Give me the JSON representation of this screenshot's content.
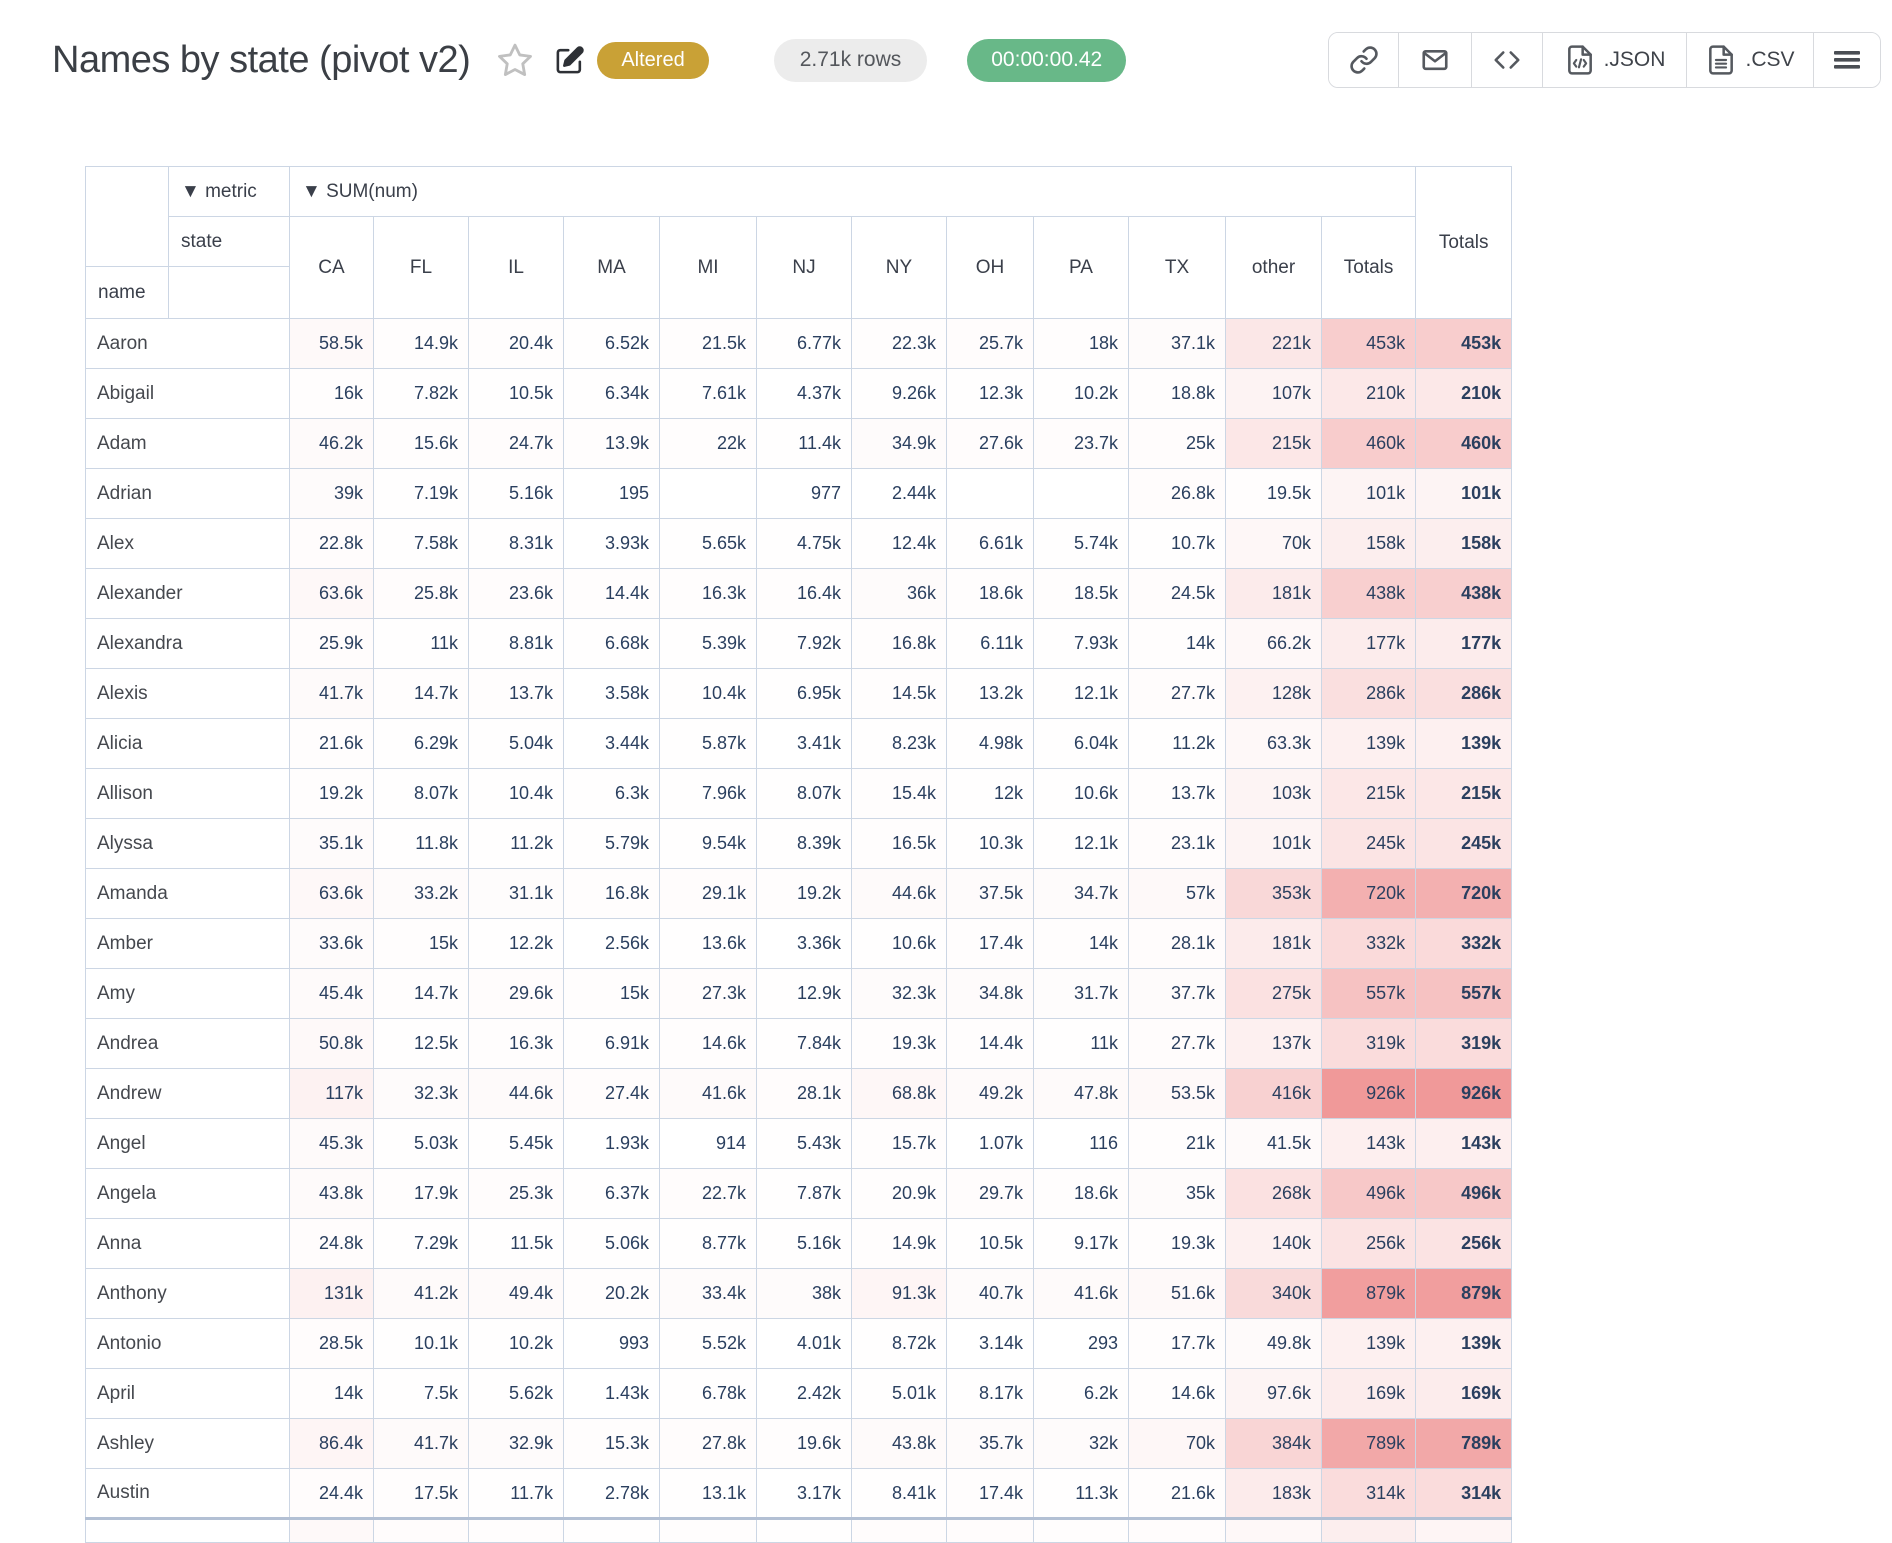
{
  "header": {
    "title": "Names by state (pivot v2)",
    "altered_badge": "Altered",
    "rows_badge": "2.71k rows",
    "timer_badge": "00:00:00.42",
    "accent_colors": {
      "altered_bg": "#c9a136",
      "timer_bg": "#68b888",
      "rows_bg": "#ececec"
    },
    "icons": {
      "star": "star-icon",
      "edit": "edit-icon",
      "link": "link-icon",
      "mail": "mail-icon",
      "code": "code-icon",
      "json_file": "file-json-icon",
      "csv_file": "file-csv-icon",
      "menu": "hamburger-menu-icon"
    },
    "export_json_label": ".JSON",
    "export_csv_label": ".CSV"
  },
  "pivot": {
    "metric_label": "▼ metric",
    "sum_label": "▼ SUM(num)",
    "state_label": "state",
    "name_label": "name",
    "totals_outer_label": "Totals",
    "columns": [
      "CA",
      "FL",
      "IL",
      "MA",
      "MI",
      "NJ",
      "NY",
      "OH",
      "PA",
      "TX",
      "other",
      "Totals"
    ],
    "heatmap": {
      "low_color": "#ffffff",
      "high_color": "#f09999",
      "max_value": "926k"
    },
    "rows": [
      {
        "name": "Aaron",
        "values": [
          "58.5k",
          "14.9k",
          "20.4k",
          "6.52k",
          "21.5k",
          "6.77k",
          "22.3k",
          "25.7k",
          "18k",
          "37.1k",
          "221k",
          "453k"
        ],
        "total": "453k"
      },
      {
        "name": "Abigail",
        "values": [
          "16k",
          "7.82k",
          "10.5k",
          "6.34k",
          "7.61k",
          "4.37k",
          "9.26k",
          "12.3k",
          "10.2k",
          "18.8k",
          "107k",
          "210k"
        ],
        "total": "210k"
      },
      {
        "name": "Adam",
        "values": [
          "46.2k",
          "15.6k",
          "24.7k",
          "13.9k",
          "22k",
          "11.4k",
          "34.9k",
          "27.6k",
          "23.7k",
          "25k",
          "215k",
          "460k"
        ],
        "total": "460k"
      },
      {
        "name": "Adrian",
        "values": [
          "39k",
          "7.19k",
          "5.16k",
          "195",
          "",
          "977",
          "2.44k",
          "",
          "",
          "26.8k",
          "19.5k",
          "101k"
        ],
        "total": "101k"
      },
      {
        "name": "Alex",
        "values": [
          "22.8k",
          "7.58k",
          "8.31k",
          "3.93k",
          "5.65k",
          "4.75k",
          "12.4k",
          "6.61k",
          "5.74k",
          "10.7k",
          "70k",
          "158k"
        ],
        "total": "158k"
      },
      {
        "name": "Alexander",
        "values": [
          "63.6k",
          "25.8k",
          "23.6k",
          "14.4k",
          "16.3k",
          "16.4k",
          "36k",
          "18.6k",
          "18.5k",
          "24.5k",
          "181k",
          "438k"
        ],
        "total": "438k"
      },
      {
        "name": "Alexandra",
        "values": [
          "25.9k",
          "11k",
          "8.81k",
          "6.68k",
          "5.39k",
          "7.92k",
          "16.8k",
          "6.11k",
          "7.93k",
          "14k",
          "66.2k",
          "177k"
        ],
        "total": "177k"
      },
      {
        "name": "Alexis",
        "values": [
          "41.7k",
          "14.7k",
          "13.7k",
          "3.58k",
          "10.4k",
          "6.95k",
          "14.5k",
          "13.2k",
          "12.1k",
          "27.7k",
          "128k",
          "286k"
        ],
        "total": "286k"
      },
      {
        "name": "Alicia",
        "values": [
          "21.6k",
          "6.29k",
          "5.04k",
          "3.44k",
          "5.87k",
          "3.41k",
          "8.23k",
          "4.98k",
          "6.04k",
          "11.2k",
          "63.3k",
          "139k"
        ],
        "total": "139k"
      },
      {
        "name": "Allison",
        "values": [
          "19.2k",
          "8.07k",
          "10.4k",
          "6.3k",
          "7.96k",
          "8.07k",
          "15.4k",
          "12k",
          "10.6k",
          "13.7k",
          "103k",
          "215k"
        ],
        "total": "215k"
      },
      {
        "name": "Alyssa",
        "values": [
          "35.1k",
          "11.8k",
          "11.2k",
          "5.79k",
          "9.54k",
          "8.39k",
          "16.5k",
          "10.3k",
          "12.1k",
          "23.1k",
          "101k",
          "245k"
        ],
        "total": "245k"
      },
      {
        "name": "Amanda",
        "values": [
          "63.6k",
          "33.2k",
          "31.1k",
          "16.8k",
          "29.1k",
          "19.2k",
          "44.6k",
          "37.5k",
          "34.7k",
          "57k",
          "353k",
          "720k"
        ],
        "total": "720k"
      },
      {
        "name": "Amber",
        "values": [
          "33.6k",
          "15k",
          "12.2k",
          "2.56k",
          "13.6k",
          "3.36k",
          "10.6k",
          "17.4k",
          "14k",
          "28.1k",
          "181k",
          "332k"
        ],
        "total": "332k"
      },
      {
        "name": "Amy",
        "values": [
          "45.4k",
          "14.7k",
          "29.6k",
          "15k",
          "27.3k",
          "12.9k",
          "32.3k",
          "34.8k",
          "31.7k",
          "37.7k",
          "275k",
          "557k"
        ],
        "total": "557k"
      },
      {
        "name": "Andrea",
        "values": [
          "50.8k",
          "12.5k",
          "16.3k",
          "6.91k",
          "14.6k",
          "7.84k",
          "19.3k",
          "14.4k",
          "11k",
          "27.7k",
          "137k",
          "319k"
        ],
        "total": "319k"
      },
      {
        "name": "Andrew",
        "values": [
          "117k",
          "32.3k",
          "44.6k",
          "27.4k",
          "41.6k",
          "28.1k",
          "68.8k",
          "49.2k",
          "47.8k",
          "53.5k",
          "416k",
          "926k"
        ],
        "total": "926k"
      },
      {
        "name": "Angel",
        "values": [
          "45.3k",
          "5.03k",
          "5.45k",
          "1.93k",
          "914",
          "5.43k",
          "15.7k",
          "1.07k",
          "116",
          "21k",
          "41.5k",
          "143k"
        ],
        "total": "143k"
      },
      {
        "name": "Angela",
        "values": [
          "43.8k",
          "17.9k",
          "25.3k",
          "6.37k",
          "22.7k",
          "7.87k",
          "20.9k",
          "29.7k",
          "18.6k",
          "35k",
          "268k",
          "496k"
        ],
        "total": "496k"
      },
      {
        "name": "Anna",
        "values": [
          "24.8k",
          "7.29k",
          "11.5k",
          "5.06k",
          "8.77k",
          "5.16k",
          "14.9k",
          "10.5k",
          "9.17k",
          "19.3k",
          "140k",
          "256k"
        ],
        "total": "256k"
      },
      {
        "name": "Anthony",
        "values": [
          "131k",
          "41.2k",
          "49.4k",
          "20.2k",
          "33.4k",
          "38k",
          "91.3k",
          "40.7k",
          "41.6k",
          "51.6k",
          "340k",
          "879k"
        ],
        "total": "879k"
      },
      {
        "name": "Antonio",
        "values": [
          "28.5k",
          "10.1k",
          "10.2k",
          "993",
          "5.52k",
          "4.01k",
          "8.72k",
          "3.14k",
          "293",
          "17.7k",
          "49.8k",
          "139k"
        ],
        "total": "139k"
      },
      {
        "name": "April",
        "values": [
          "14k",
          "7.5k",
          "5.62k",
          "1.43k",
          "6.78k",
          "2.42k",
          "5.01k",
          "8.17k",
          "6.2k",
          "14.6k",
          "97.6k",
          "169k"
        ],
        "total": "169k"
      },
      {
        "name": "Ashley",
        "values": [
          "86.4k",
          "41.7k",
          "32.9k",
          "15.3k",
          "27.8k",
          "19.6k",
          "43.8k",
          "35.7k",
          "32k",
          "70k",
          "384k",
          "789k"
        ],
        "total": "789k"
      },
      {
        "name": "Austin",
        "values": [
          "24.4k",
          "17.5k",
          "11.7k",
          "2.78k",
          "13.1k",
          "3.17k",
          "8.41k",
          "17.4k",
          "11.3k",
          "21.6k",
          "183k",
          "314k"
        ],
        "total": "314k"
      }
    ],
    "partial_row_tints": {
      "values": [
        0.06,
        0.03,
        0.02,
        0.01,
        0.02,
        0.01,
        0.03,
        0.03,
        0.02,
        0.03,
        0.07,
        0.17
      ],
      "total": 0.1
    }
  }
}
